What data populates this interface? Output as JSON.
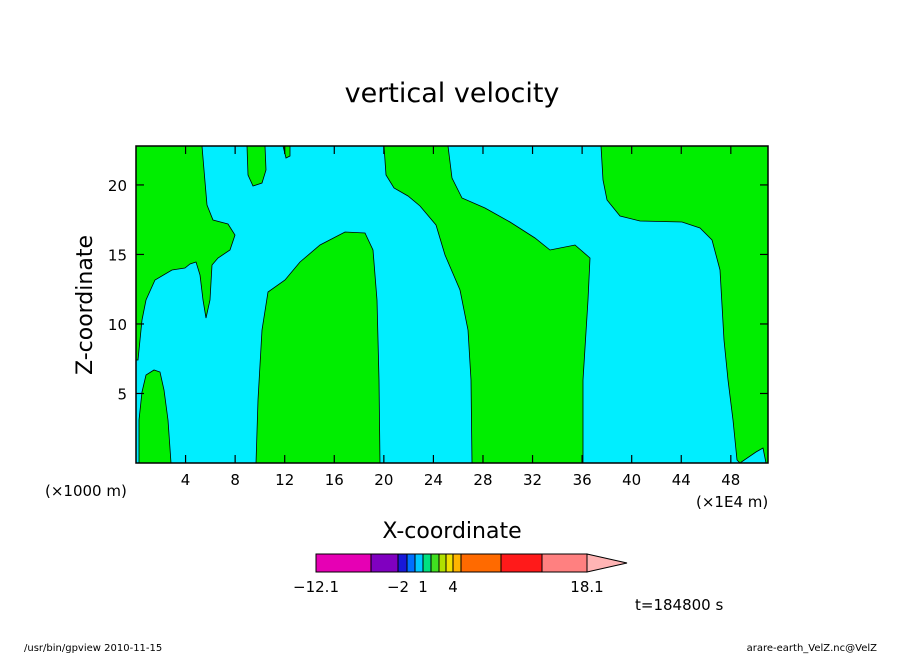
{
  "chart_data": {
    "type": "heatmap",
    "title": "vertical velocity",
    "xlabel": "X-coordinate",
    "ylabel": "Z-coordinate",
    "x_scale_left": "(×1000 m)",
    "x_scale_right": "(×1E4 m)",
    "x_ticks": [
      "4",
      "8",
      "12",
      "16",
      "20",
      "24",
      "28",
      "32",
      "36",
      "40",
      "44",
      "48"
    ],
    "y_ticks": [
      "5",
      "10",
      "15",
      "20"
    ],
    "xlim": [
      0,
      51
    ],
    "ylim": [
      0,
      22.8
    ],
    "colorbar": {
      "labels": [
        "−12.1",
        "−2",
        "1",
        "4",
        "18.1"
      ],
      "colors": [
        "#e600b4",
        "#8000c0",
        "#1818d8",
        "#0070ff",
        "#00c8ff",
        "#00e080",
        "#40e020",
        "#b0e000",
        "#f0e000",
        "#ffb400",
        "#ff6a00",
        "#ff1a1a",
        "#ff8080",
        "#ffb4b4"
      ]
    },
    "field_colors": {
      "positive": "#00ee00",
      "negative": "#00eeff"
    },
    "time_label": "t=184800 s"
  },
  "footer": {
    "left": "/usr/bin/gpview   2010-11-15",
    "right": "arare-earth_VelZ.nc@VelZ"
  }
}
